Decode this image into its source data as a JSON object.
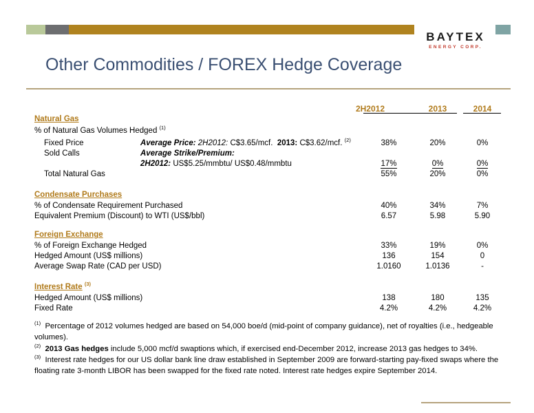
{
  "logo": {
    "main": "BAYTEX",
    "sub": "ENERGY CORP."
  },
  "title": "Other Commodities / FOREX Hedge Coverage",
  "columns": [
    "2H2012",
    "2013",
    "2014"
  ],
  "natural_gas": {
    "section": "Natural Gas",
    "pct_label": "% of Natural Gas Volumes Hedged",
    "pct_sup": "(1)",
    "fixed_price": {
      "label": "Fixed Price",
      "avg_price_label": "Average Price:",
      "avg_price_2012_label": "2H2012:",
      "avg_price_2012_value": "C$3.65/mcf.",
      "avg_price_2013_label": "2013:",
      "avg_price_2013_value": "C$3.62/mcf.",
      "sup": "(2)",
      "values": [
        "38%",
        "20%",
        "0%"
      ]
    },
    "sold_calls": {
      "label": "Sold Calls",
      "strike_label": "Average Strike/Premium:",
      "strike_2012_label": "2H2012:",
      "strike_2012_value": "US$5.25/mmbtu/ US$0.48/mmbtu",
      "values": [
        "17%",
        "0%",
        "0%"
      ]
    },
    "total": {
      "label": "Total Natural Gas",
      "values": [
        "55%",
        "20%",
        "0%"
      ]
    }
  },
  "condensate": {
    "section": "Condensate Purchases",
    "rows": [
      {
        "label": "% of Condensate Requirement Purchased",
        "values": [
          "40%",
          "34%",
          "7%"
        ]
      },
      {
        "label": "Equivalent Premium (Discount) to WTI (US$/bbl)",
        "values": [
          "6.57",
          "5.98",
          "5.90"
        ]
      }
    ]
  },
  "forex": {
    "section": "Foreign Exchange",
    "rows": [
      {
        "label": "% of Foreign Exchange Hedged",
        "values": [
          "33%",
          "19%",
          "0%"
        ]
      },
      {
        "label": "Hedged Amount (US$ millions)",
        "values": [
          "136",
          "154",
          "0"
        ]
      },
      {
        "label": "Average Swap Rate (CAD per USD)",
        "values": [
          "1.0160",
          "1.0136",
          "-"
        ]
      }
    ]
  },
  "interest": {
    "section": "Interest Rate",
    "sup": "(3)",
    "rows": [
      {
        "label": "Hedged Amount (US$ millions)",
        "values": [
          "138",
          "180",
          "135"
        ]
      },
      {
        "label": "Fixed Rate",
        "values": [
          "4.2%",
          "4.2%",
          "4.2%"
        ]
      }
    ]
  },
  "footnotes": {
    "f1_mark": "(1)",
    "f1_text": "Percentage of 2012 volumes hedged are based on 54,000 boe/d (mid-point of company guidance), net of royalties (i.e., hedgeable volumes).",
    "f2_mark": "(2)",
    "f2_bold": "2013 Gas hedges",
    "f2_text": "include 5,000 mcf/d swaptions which, if exercised end-December 2012, increase 2013 gas hedges to 34%.",
    "f3_mark": "(3)",
    "f3_text": "Interest rate hedges for our US dollar bank line draw established in September 2009 are forward-starting pay-fixed swaps where the floating rate 3-month LIBOR has been swapped for the fixed rate noted. Interest rate hedges expire September 2014."
  },
  "colors": {
    "title": "#3a4f72",
    "section": "#b07a1a",
    "rule": "#b5a27c",
    "logo_accent": "#c0392b"
  }
}
